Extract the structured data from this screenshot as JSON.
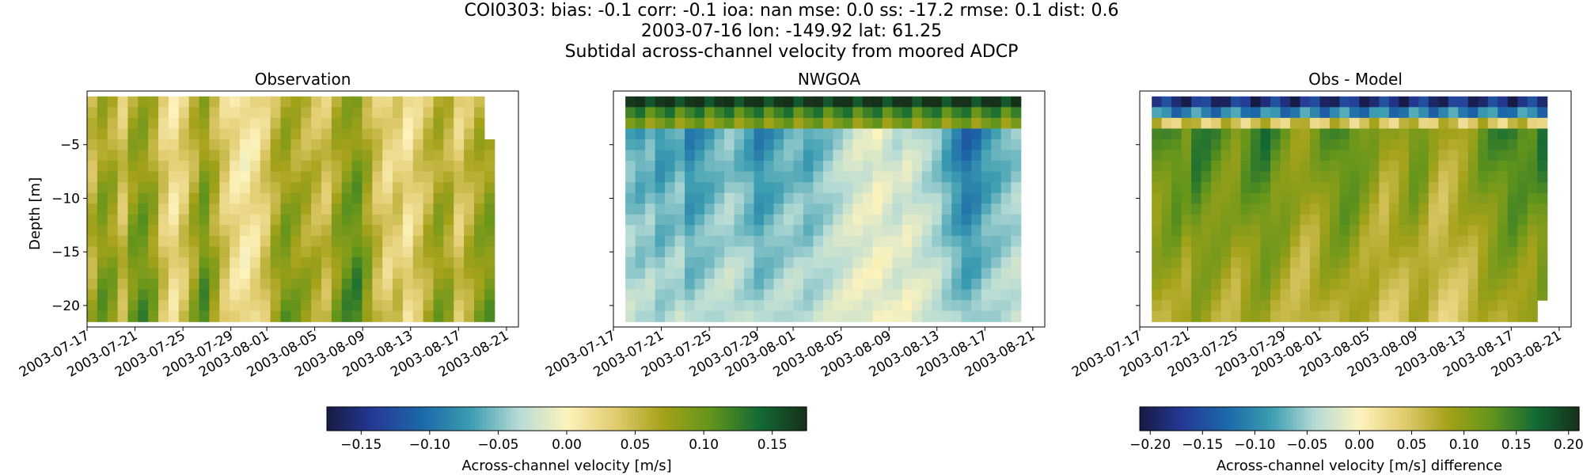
{
  "figure": {
    "title_lines": [
      "COI0303: bias: -0.1  corr: -0.1  ioa: nan  mse: 0.0  ss: -17.2  rmse: 0.1  dist: 0.6",
      "2003-07-16 lon: -149.92 lat: 61.25",
      "Subtidal across-channel velocity from moored ADCP"
    ]
  },
  "colors": {
    "colormap_delta": [
      "#161a44",
      "#253a97",
      "#1c69a8",
      "#3c9db1",
      "#b6dbd5",
      "#fdf3bd",
      "#e2cc70",
      "#a5a21a",
      "#63951b",
      "#136b35",
      "#163019"
    ],
    "background": "#ffffff"
  },
  "chart_data": [
    {
      "type": "heatmap",
      "panel": "Observation",
      "title": "Observation",
      "ylabel": "Depth [m]",
      "xlabel": "",
      "x_tick_labels": [
        "2003-07-17",
        "2003-07-21",
        "2003-07-25",
        "2003-07-29",
        "2003-08-01",
        "2003-08-05",
        "2003-08-09",
        "2003-08-13",
        "2003-08-17",
        "2003-08-21"
      ],
      "y_ticks": [
        -5,
        -10,
        -15,
        -20
      ],
      "y_tick_labels": [
        "−5",
        "−10",
        "−15",
        "−20"
      ],
      "xlim": [
        "2003-07-17",
        "2003-08-22"
      ],
      "ylim": [
        -22,
        0
      ],
      "data_start": "2003-07-17",
      "data_end": "2003-08-20",
      "depth_top": -0.5,
      "depth_bottom": -21.5,
      "columns": 40,
      "rows": 21,
      "colorbar": "shared",
      "vlim": [
        -0.175,
        0.175
      ],
      "time_profile": [
        0.06,
        0.09,
        0.08,
        0.05,
        0.09,
        0.1,
        0.08,
        0.04,
        0.02,
        0.04,
        0.07,
        0.1,
        0.07,
        0.04,
        0.02,
        0.01,
        0.02,
        0.04,
        0.07,
        0.09,
        0.08,
        0.07,
        0.06,
        0.05,
        0.08,
        0.1,
        0.11,
        0.08,
        0.05,
        0.03,
        0.04,
        0.02,
        0.04,
        0.06,
        0.08,
        0.07,
        0.04,
        0.06,
        0.08,
        0.09
      ],
      "note": "values in m/s; mostly positive 0.00–0.12"
    },
    {
      "type": "heatmap",
      "panel": "NWGOA",
      "title": "NWGOA",
      "ylabel": "",
      "x_tick_labels": [
        "2003-07-17",
        "2003-07-21",
        "2003-07-25",
        "2003-07-29",
        "2003-08-01",
        "2003-08-05",
        "2003-08-09",
        "2003-08-13",
        "2003-08-17",
        "2003-08-21"
      ],
      "y_ticks": [
        -5,
        -10,
        -15,
        -20
      ],
      "xlim": [
        "2003-07-17",
        "2003-08-22"
      ],
      "ylim": [
        -22,
        0
      ],
      "data_start": "2003-07-18",
      "data_end": "2003-08-20",
      "columns": 40,
      "rows": 21,
      "colorbar": "shared",
      "vlim": [
        -0.175,
        0.175
      ],
      "surface_layer": [
        0.17,
        0.12,
        0.09
      ],
      "time_profile": [
        -0.06,
        -0.07,
        -0.06,
        -0.08,
        -0.07,
        -0.06,
        -0.09,
        -0.08,
        -0.07,
        -0.06,
        -0.05,
        -0.06,
        -0.07,
        -0.09,
        -0.08,
        -0.07,
        -0.06,
        -0.06,
        -0.07,
        -0.06,
        -0.05,
        -0.04,
        -0.03,
        -0.02,
        -0.02,
        -0.01,
        -0.02,
        -0.03,
        -0.02,
        -0.03,
        -0.04,
        -0.05,
        -0.07,
        -0.09,
        -0.11,
        -0.1,
        -0.08,
        -0.07,
        -0.06,
        -0.05
      ]
    },
    {
      "type": "heatmap",
      "panel": "Obs - Model",
      "title": "Obs - Model",
      "ylabel": "",
      "x_tick_labels": [
        "2003-07-17",
        "2003-07-21",
        "2003-07-25",
        "2003-07-29",
        "2003-08-01",
        "2003-08-05",
        "2003-08-09",
        "2003-08-13",
        "2003-08-17",
        "2003-08-21"
      ],
      "y_ticks": [
        -5,
        -10,
        -15,
        -20
      ],
      "xlim": [
        "2003-07-17",
        "2003-08-22"
      ],
      "ylim": [
        -22,
        0
      ],
      "data_start": "2003-07-18",
      "data_end": "2003-08-20",
      "columns": 40,
      "rows": 21,
      "colorbar": "delta",
      "vlim": [
        -0.2,
        0.2
      ],
      "surface_layer": [
        -0.17,
        -0.1,
        0.05
      ],
      "time_profile": [
        0.12,
        0.13,
        0.14,
        0.12,
        0.15,
        0.14,
        0.13,
        0.12,
        0.11,
        0.13,
        0.14,
        0.15,
        0.13,
        0.12,
        0.1,
        0.09,
        0.1,
        0.12,
        0.13,
        0.14,
        0.13,
        0.11,
        0.1,
        0.08,
        0.09,
        0.1,
        0.12,
        0.11,
        0.08,
        0.07,
        0.08,
        0.09,
        0.1,
        0.12,
        0.13,
        0.14,
        0.15,
        0.14,
        0.13,
        0.15
      ]
    }
  ],
  "colorbars": {
    "shared": {
      "label": "Across-channel velocity [m/s]",
      "tick_values": [
        -0.15,
        -0.1,
        -0.05,
        0.0,
        0.05,
        0.1,
        0.15
      ],
      "tick_labels": [
        "−0.15",
        "−0.10",
        "−0.05",
        "0.00",
        "0.05",
        "0.10",
        "0.15"
      ],
      "range": [
        -0.175,
        0.175
      ]
    },
    "delta": {
      "label": "Across-channel velocity [m/s] difference",
      "tick_values": [
        -0.2,
        -0.15,
        -0.1,
        -0.05,
        0.0,
        0.05,
        0.1,
        0.15,
        0.2
      ],
      "tick_labels": [
        "−0.20",
        "−0.15",
        "−0.10",
        "−0.05",
        "0.00",
        "0.05",
        "0.10",
        "0.15",
        "0.20"
      ],
      "range": [
        -0.21,
        0.21
      ]
    }
  }
}
